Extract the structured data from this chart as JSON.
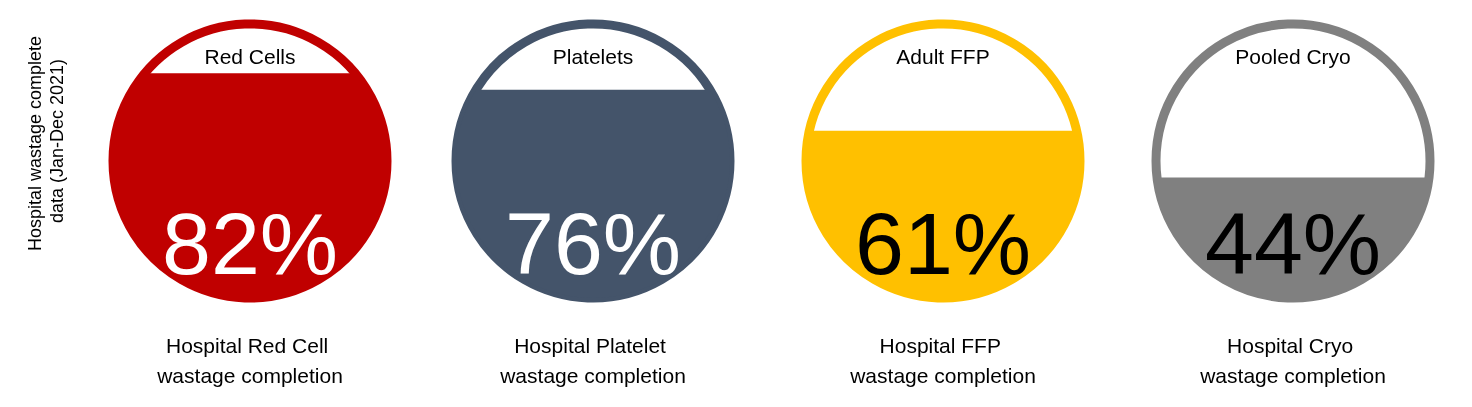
{
  "chart_data": [
    {
      "type": "other",
      "title": "Red Cells",
      "xlabel": "Hospital Red Cell wastage completion",
      "ylabel": "Hospital wastage complete data (Jan-Dec 2021)",
      "values": [
        82
      ],
      "value_labels": [
        "82%"
      ],
      "color": "#c00000"
    },
    {
      "type": "other",
      "title": "Platelets",
      "xlabel": "Hospital Platelet wastage completion",
      "values": [
        76
      ],
      "value_labels": [
        "76%"
      ],
      "color": "#44546a"
    },
    {
      "type": "other",
      "title": "Adult FFP",
      "xlabel": "Hospital FFP wastage completion",
      "values": [
        61
      ],
      "value_labels": [
        "61%"
      ],
      "color": "#ffc000"
    },
    {
      "type": "other",
      "title": "Pooled Cryo",
      "xlabel": "Hospital Cryo wastage completion",
      "values": [
        44
      ],
      "value_labels": [
        "44%"
      ],
      "color": "#808080"
    }
  ]
}
